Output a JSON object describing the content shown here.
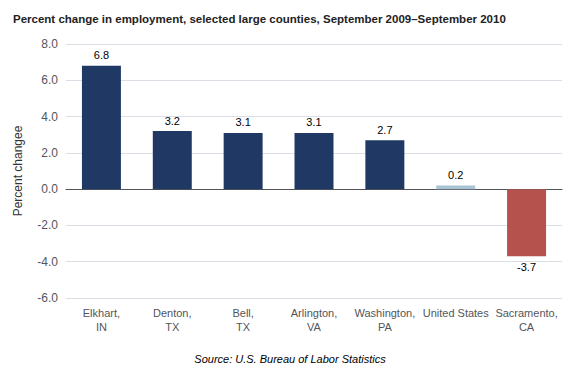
{
  "chart_data": {
    "type": "bar",
    "title": "Percent change in employment, selected large counties, September 2009–September 2010",
    "categories": [
      "Elkhart,\nIN",
      "Denton,\nTX",
      "Bell,\nTX",
      "Arlington,\nVA",
      "Washington,\nPA",
      "United States",
      "Sacramento,\nCA"
    ],
    "values": [
      6.8,
      3.2,
      3.1,
      3.1,
      2.7,
      0.2,
      -3.7
    ],
    "colors": [
      "#1f3864",
      "#1f3864",
      "#1f3864",
      "#1f3864",
      "#1f3864",
      "#a8c4d4",
      "#b5524e"
    ],
    "ylabel": "Percent changee",
    "ylim": [
      -6.0,
      8.0
    ],
    "yticks": [
      {
        "value": -6.0,
        "label": "-6.0"
      },
      {
        "value": -4.0,
        "label": "-4.0"
      },
      {
        "value": -2.0,
        "label": "-2.0"
      },
      {
        "value": 0.0,
        "label": "0.0"
      },
      {
        "value": 2.0,
        "label": "2.0"
      },
      {
        "value": 4.0,
        "label": "4.0"
      },
      {
        "value": 6.0,
        "label": "6.0"
      },
      {
        "value": 8.0,
        "label": "8.0"
      }
    ],
    "annotations": [
      "Source: U.S. Bureau of Labor Statistics"
    ],
    "data_labels": true,
    "grid": true
  }
}
